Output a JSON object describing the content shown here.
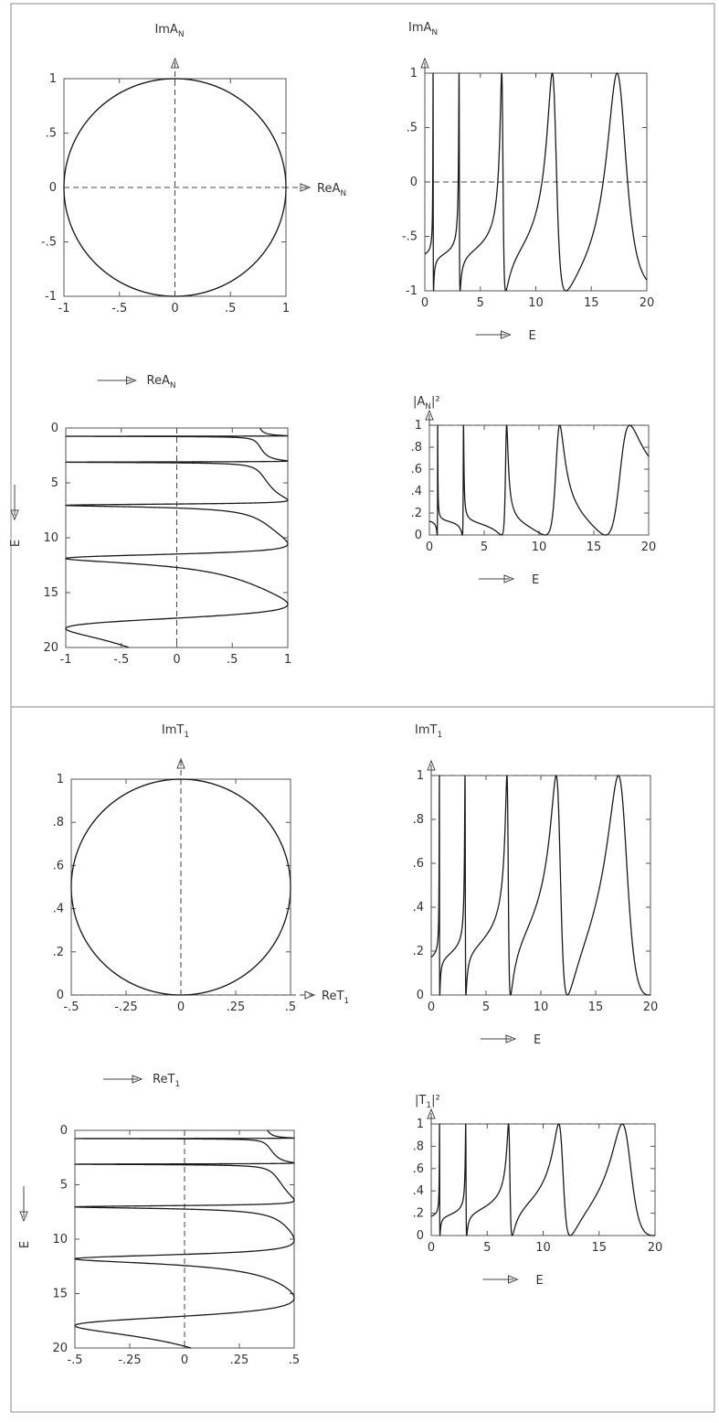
{
  "chart_data": [
    {
      "type": "line",
      "role": "argand",
      "ylabel": "ImA",
      "ylabel_sub": "N",
      "xlabel": "ReA",
      "xlabel_sub": "N",
      "xlim": [
        -1,
        1
      ],
      "ylim": [
        -1,
        1
      ],
      "xticks": [
        "-1",
        "-.5",
        "0",
        ".5",
        "1"
      ],
      "yticks": [
        "-1",
        "-.5",
        "0",
        ".5",
        "1"
      ],
      "xtick_values": [
        -1,
        -0.5,
        0,
        0.5,
        1
      ],
      "ytick_values": [
        -1,
        -0.5,
        0,
        0.5,
        1
      ],
      "caption_label": "ReA",
      "caption_sub": "N"
    },
    {
      "type": "line",
      "role": "vs_energy",
      "ylabel": "ImA",
      "ylabel_sub": "N",
      "xlabel": "E",
      "xlim": [
        0,
        20
      ],
      "ylim": [
        -1,
        1
      ],
      "xticks": [
        "0",
        "5",
        "10",
        "15",
        "20"
      ],
      "yticks": [
        "-1",
        "-.5",
        "0",
        ".5",
        "1"
      ],
      "xtick_values": [
        0,
        5,
        10,
        15,
        20
      ],
      "ytick_values": [
        -1,
        -0.5,
        0,
        0.5,
        1
      ]
    },
    {
      "type": "line",
      "role": "real_vs_energy",
      "xlabel": "E",
      "xlim": [
        -1,
        1
      ],
      "ylim": [
        0,
        20
      ],
      "xticks": [
        "-1",
        "-.5",
        "0",
        ".5",
        "1"
      ],
      "yticks": [
        "0",
        "5",
        "10",
        "15",
        "20"
      ],
      "xtick_values": [
        -1,
        -0.5,
        0,
        0.5,
        1
      ],
      "ytick_values": [
        0,
        5,
        10,
        15,
        20
      ]
    },
    {
      "type": "line",
      "role": "modulus_squared",
      "ylabel": "|A",
      "ylabel_sub": "N",
      "ylabel_tail": "|²",
      "xlabel": "E",
      "xlim": [
        0,
        20
      ],
      "ylim": [
        0,
        1
      ],
      "xticks": [
        "0",
        "5",
        "10",
        "15",
        "20"
      ],
      "yticks": [
        "0",
        ".2",
        ".4",
        ".6",
        ".8",
        "1"
      ],
      "xtick_values": [
        0,
        5,
        10,
        15,
        20
      ],
      "ytick_values": [
        0,
        0.2,
        0.4,
        0.6,
        0.8,
        1
      ]
    },
    {
      "type": "line",
      "role": "argand",
      "ylabel": "ImT",
      "ylabel_sub": "1",
      "xlabel": "ReT",
      "xlabel_sub": "1",
      "xlim": [
        -0.5,
        0.5
      ],
      "ylim": [
        0,
        1
      ],
      "xticks": [
        "-.5",
        "-.25",
        "0",
        ".25",
        ".5"
      ],
      "yticks": [
        "0",
        ".2",
        ".4",
        ".6",
        ".8",
        "1"
      ],
      "xtick_values": [
        -0.5,
        -0.25,
        0,
        0.25,
        0.5
      ],
      "ytick_values": [
        0,
        0.2,
        0.4,
        0.6,
        0.8,
        1
      ],
      "caption_label": "ReT",
      "caption_sub": "1"
    },
    {
      "type": "line",
      "role": "vs_energy",
      "ylabel": "ImT",
      "ylabel_sub": "1",
      "xlabel": "E",
      "xlim": [
        0,
        20
      ],
      "ylim": [
        0,
        1
      ],
      "xticks": [
        "0",
        "5",
        "10",
        "15",
        "20"
      ],
      "yticks": [
        "0",
        ".2",
        ".4",
        ".6",
        ".8",
        "1"
      ],
      "xtick_values": [
        0,
        5,
        10,
        15,
        20
      ],
      "ytick_values": [
        0,
        0.2,
        0.4,
        0.6,
        0.8,
        1
      ]
    },
    {
      "type": "line",
      "role": "real_vs_energy",
      "xlabel": "E",
      "xlim": [
        -0.5,
        0.5
      ],
      "ylim": [
        0,
        20
      ],
      "xticks": [
        "-.5",
        "-.25",
        "0",
        ".25",
        ".5"
      ],
      "yticks": [
        "0",
        "5",
        "10",
        "15",
        "20"
      ],
      "xtick_values": [
        -0.5,
        -0.25,
        0,
        0.25,
        0.5
      ],
      "ytick_values": [
        0,
        5,
        10,
        15,
        20
      ]
    },
    {
      "type": "line",
      "role": "modulus_squared",
      "ylabel": "|T",
      "ylabel_sub": "1",
      "ylabel_tail": "|²",
      "xlabel": "E",
      "xlim": [
        0,
        20
      ],
      "ylim": [
        0,
        1
      ],
      "xticks": [
        "0",
        "5",
        "10",
        "15",
        "20"
      ],
      "yticks": [
        "0",
        ".2",
        ".4",
        ".6",
        ".8",
        "1"
      ],
      "xtick_values": [
        0,
        5,
        10,
        15,
        20
      ],
      "ytick_values": [
        0,
        0.2,
        0.4,
        0.6,
        0.8,
        1
      ]
    }
  ],
  "resonances": {
    "positions": [
      0.75,
      3.1,
      7.0,
      11.7,
      17.5
    ],
    "widths": [
      0.03,
      0.07,
      0.3,
      1.0,
      2.2
    ],
    "top_background_offset": -0.52,
    "bottom_background_phase": 0.27,
    "bottom_background_phase_slope": 0.0124,
    "e_range": [
      0,
      20
    ]
  },
  "colors": {
    "line": "#1a1a1a",
    "frame": "#555555",
    "circle": "#7a7a7a",
    "dash": "#444444",
    "border": "#8a8a8a"
  }
}
